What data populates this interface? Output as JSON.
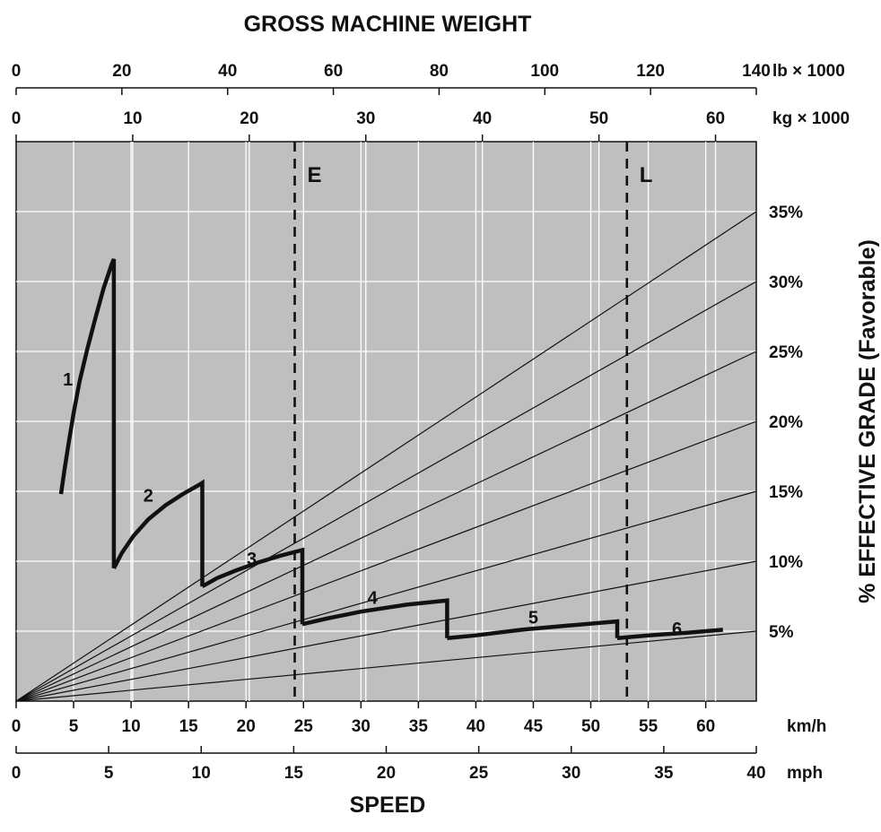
{
  "chart_data": {
    "type": "line",
    "title": "GROSS MACHINE WEIGHT",
    "xlabel": "SPEED",
    "ylabel": "% EFFECTIVE GRADE (Favorable)",
    "top_axis_lb": {
      "unit": "lb × 1000",
      "range": [
        0,
        140
      ],
      "ticks": [
        "0",
        "20",
        "40",
        "60",
        "80",
        "100",
        "120",
        "140"
      ]
    },
    "top_axis_kg": {
      "unit": "kg × 1000",
      "range": [
        0,
        63.5
      ],
      "ticks": [
        "0",
        "10",
        "20",
        "30",
        "40",
        "50",
        "60"
      ]
    },
    "bottom_axis_kmh": {
      "unit": "km/h",
      "range": [
        0,
        64.4
      ],
      "ticks": [
        "0",
        "5",
        "10",
        "15",
        "20",
        "25",
        "30",
        "35",
        "40",
        "45",
        "50",
        "55",
        "60"
      ]
    },
    "bottom_axis_mph": {
      "unit": "mph",
      "range": [
        0,
        40
      ],
      "ticks": [
        "0",
        "5",
        "10",
        "15",
        "20",
        "25",
        "30",
        "35",
        "40"
      ]
    },
    "grade_lines": [
      {
        "label": "5%",
        "end_value": 5
      },
      {
        "label": "10%",
        "end_value": 10
      },
      {
        "label": "15%",
        "end_value": 15
      },
      {
        "label": "20%",
        "end_value": 20
      },
      {
        "label": "25%",
        "end_value": 25
      },
      {
        "label": "30%",
        "end_value": 30
      },
      {
        "label": "35%",
        "end_value": 35
      }
    ],
    "markers": [
      {
        "label": "E",
        "kg": 23.9
      },
      {
        "label": "L",
        "kg": 52.4
      }
    ],
    "gears": [
      {
        "name": "1",
        "label_at": [
          4.5,
          23
        ],
        "points": [
          [
            3.9,
            14.8
          ],
          [
            4.2,
            16.5
          ],
          [
            4.6,
            18.6
          ],
          [
            5.0,
            20.6
          ],
          [
            5.5,
            22.8
          ],
          [
            6.2,
            25.2
          ],
          [
            6.9,
            27.4
          ],
          [
            7.6,
            29.5
          ],
          [
            8.3,
            31.2
          ],
          [
            8.5,
            31.6
          ],
          [
            8.5,
            9.5
          ]
        ]
      },
      {
        "name": "2",
        "label_at": [
          11.5,
          14.7
        ],
        "points": [
          [
            8.5,
            9.5
          ],
          [
            9.2,
            10.6
          ],
          [
            10.2,
            11.8
          ],
          [
            11.5,
            13.0
          ],
          [
            13.0,
            14.0
          ],
          [
            14.5,
            14.8
          ],
          [
            16.0,
            15.5
          ],
          [
            16.2,
            15.6
          ],
          [
            16.2,
            8.2
          ]
        ]
      },
      {
        "name": "3",
        "label_at": [
          20.5,
          10.2
        ],
        "points": [
          [
            16.2,
            8.2
          ],
          [
            17.5,
            8.8
          ],
          [
            19.0,
            9.3
          ],
          [
            21.0,
            9.9
          ],
          [
            23.0,
            10.4
          ],
          [
            24.9,
            10.8
          ],
          [
            24.9,
            5.5
          ]
        ]
      },
      {
        "name": "4",
        "label_at": [
          31,
          7.4
        ],
        "points": [
          [
            24.9,
            5.5
          ],
          [
            27.0,
            5.9
          ],
          [
            30.0,
            6.4
          ],
          [
            34.0,
            6.9
          ],
          [
            37.5,
            7.2
          ],
          [
            37.5,
            4.5
          ]
        ]
      },
      {
        "name": "5",
        "label_at": [
          45,
          6.0
        ],
        "points": [
          [
            37.5,
            4.5
          ],
          [
            40.0,
            4.7
          ],
          [
            44.0,
            5.1
          ],
          [
            48.0,
            5.4
          ],
          [
            52.3,
            5.7
          ],
          [
            52.3,
            4.5
          ]
        ]
      },
      {
        "name": "6",
        "label_at": [
          57.5,
          5.2
        ],
        "points": [
          [
            52.3,
            4.5
          ],
          [
            55.0,
            4.7
          ],
          [
            58.5,
            4.9
          ],
          [
            61.5,
            5.1
          ]
        ]
      }
    ]
  }
}
